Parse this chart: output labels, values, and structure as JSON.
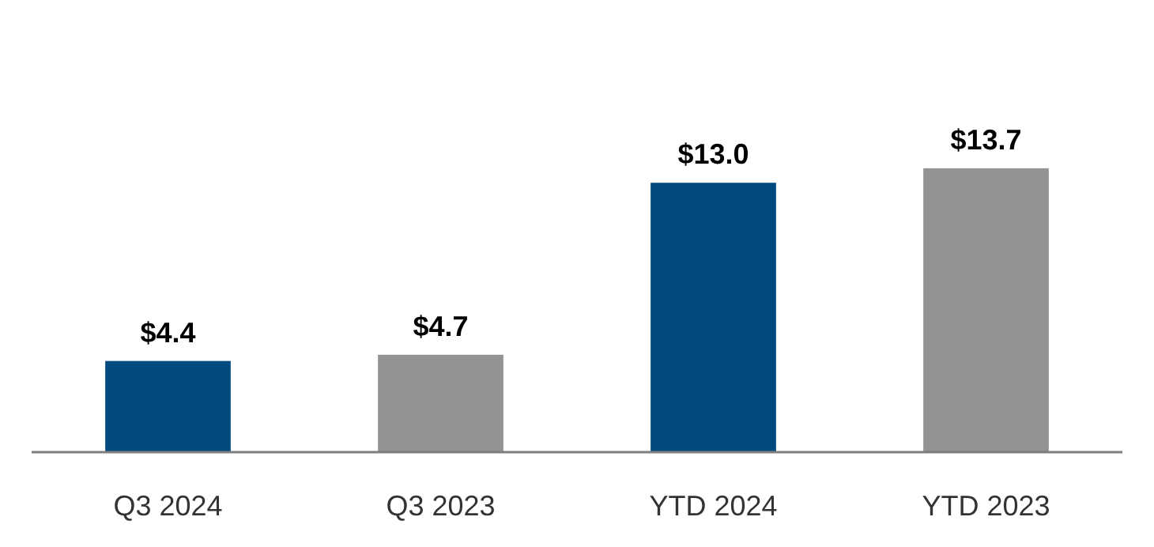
{
  "chart_data": {
    "type": "bar",
    "categories": [
      "Q3 2024",
      "Q3 2023",
      "YTD 2024",
      "YTD 2023"
    ],
    "values": [
      4.4,
      4.7,
      13.0,
      13.7
    ],
    "colors": [
      "#004a80",
      "#939393",
      "#004a80",
      "#939393"
    ],
    "value_labels": [
      "$4.4",
      "$4.7",
      "$13.0",
      "$13.7"
    ]
  }
}
